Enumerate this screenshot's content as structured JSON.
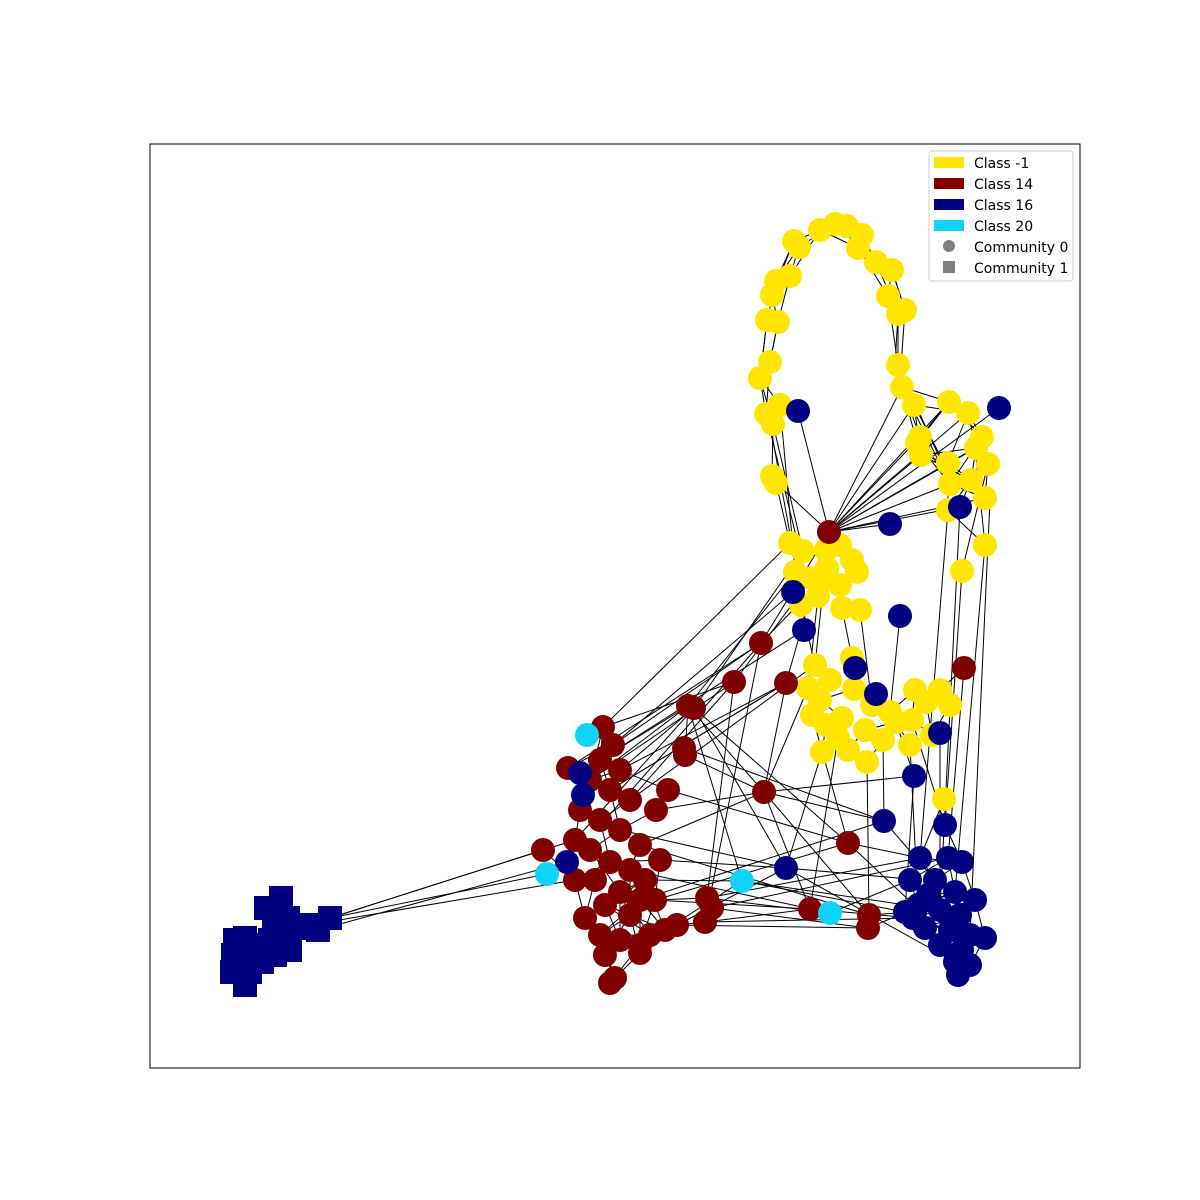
{
  "graph": {
    "type": "network",
    "legend": {
      "classes": [
        {
          "label": "Class -1",
          "color": "#ffe500"
        },
        {
          "label": "Class 14",
          "color": "#800000"
        },
        {
          "label": "Class 16",
          "color": "#000080"
        },
        {
          "label": "Class 20",
          "color": "#10d4f5"
        }
      ],
      "communities": [
        {
          "label": "Community 0",
          "marker": "circle"
        },
        {
          "label": "Community 1",
          "marker": "square"
        }
      ],
      "marker_color": "#808080"
    },
    "edge_color": "#000000"
  }
}
